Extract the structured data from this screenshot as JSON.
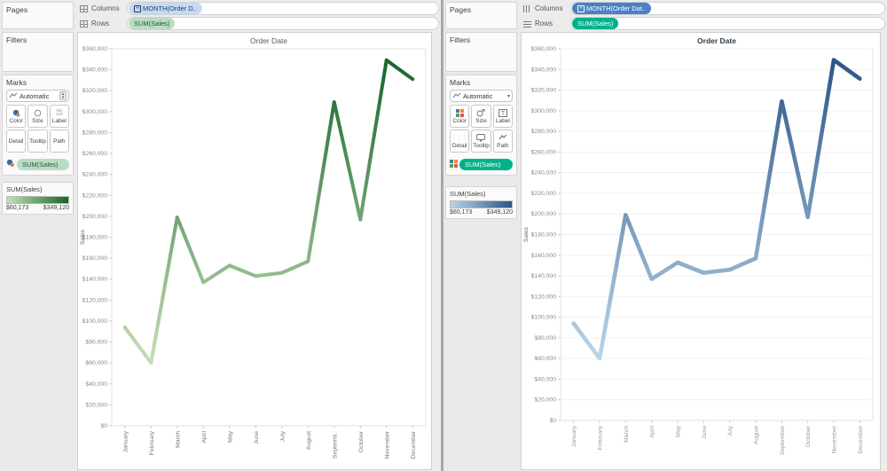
{
  "left_pane": {
    "shelves": {
      "columns_label": "Columns",
      "rows_label": "Rows",
      "columns_pill": "MONTH(Order D..",
      "rows_pill": "SUM(Sales)"
    },
    "sidebar": {
      "pages_label": "Pages",
      "filters_label": "Filters",
      "marks_label": "Marks",
      "mark_type": "Automatic",
      "mark_buttons": [
        "Color",
        "Size",
        "Label",
        "Detail",
        "Tooltip",
        "Path"
      ],
      "marks_pill": "SUM(Sales)",
      "legend": {
        "title": "SUM(Sales)",
        "min": "$60,173",
        "max": "$349,120",
        "gradient": [
          "#c5dfb6",
          "#17652a"
        ]
      }
    }
  },
  "right_pane": {
    "shelves": {
      "columns_label": "Columns",
      "rows_label": "Rows",
      "columns_pill": "MONTH(Order Dat..",
      "rows_pill": "SUM(Sales)"
    },
    "sidebar": {
      "pages_label": "Pages",
      "filters_label": "Filters",
      "marks_label": "Marks",
      "mark_type": "Automatic",
      "mark_buttons": [
        "Color",
        "Size",
        "Label",
        "Detail",
        "Tooltip",
        "Path"
      ],
      "marks_pill": "SUM(Sales)",
      "legend": {
        "title": "SUM(Sales)",
        "min": "$60,173",
        "max": "$349,120",
        "gradient": [
          "#b9d5ea",
          "#2d5687"
        ]
      }
    }
  },
  "chart_data": [
    {
      "type": "line",
      "title": "Order Date",
      "ylabel": "Sales",
      "categories": [
        "January",
        "February",
        "March",
        "April",
        "May",
        "June",
        "July",
        "August",
        "Septemb..",
        "October",
        "November",
        "December"
      ],
      "values": [
        94000,
        60173,
        199000,
        137000,
        153000,
        143000,
        146000,
        157000,
        309000,
        197000,
        349120,
        331000
      ],
      "ylim": [
        0,
        360000
      ],
      "ytick_step": 20000,
      "grid": false,
      "legend_position": "sidebar",
      "color_ramp": [
        "#c5dfb6",
        "#17652a"
      ],
      "color_by": "value"
    },
    {
      "type": "line",
      "title": "Order Date",
      "ylabel": "Sales",
      "categories": [
        "January",
        "February",
        "March",
        "April",
        "May",
        "June",
        "July",
        "August",
        "September",
        "October",
        "November",
        "December"
      ],
      "values": [
        94000,
        60173,
        199000,
        137000,
        153000,
        143000,
        146000,
        157000,
        309000,
        197000,
        349120,
        331000
      ],
      "ylim": [
        0,
        360000
      ],
      "ytick_step": 20000,
      "grid": true,
      "legend_position": "sidebar",
      "color_ramp": [
        "#b9d5ea",
        "#2d5687"
      ],
      "color_by": "value"
    }
  ]
}
